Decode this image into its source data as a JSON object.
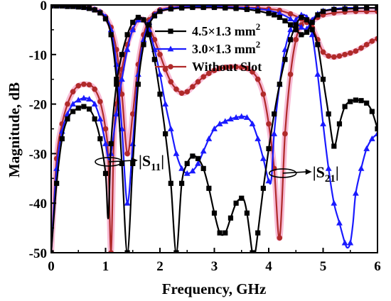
{
  "chart_data": {
    "type": "line",
    "title": "",
    "xlabel": "Frequency, GHz",
    "ylabel": "Magnitude, dB",
    "xlim": [
      0,
      6
    ],
    "ylim": [
      -50,
      0
    ],
    "xticks": [
      "0",
      "1",
      "2",
      "3",
      "4",
      "5",
      "6"
    ],
    "yticks": [
      "0",
      "-10",
      "-20",
      "-30",
      "-40",
      "-50"
    ],
    "grid": false,
    "legend_position": "top-right",
    "annotations": [
      {
        "text": "|S",
        "sub": "11",
        "tail": "|",
        "x": 1.15,
        "y": -30.5
      },
      {
        "text": "|S",
        "sub": "21",
        "tail": "|",
        "x": 4.35,
        "y": -32.8
      }
    ],
    "series": [
      {
        "name": "4.5×1.3 mm",
        "name_sup": "2",
        "color": "#000000",
        "marker": "square",
        "s11": {
          "x": [
            0.0,
            0.1,
            0.2,
            0.3,
            0.4,
            0.5,
            0.6,
            0.7,
            0.8,
            0.9,
            1.0,
            1.05,
            1.1,
            1.2,
            1.3,
            1.4,
            1.5,
            1.6,
            1.7,
            1.8,
            1.9,
            2.0,
            2.1,
            2.2,
            2.3,
            2.4,
            2.5,
            2.6,
            2.7,
            2.8,
            2.9,
            3.0,
            3.1,
            3.2,
            3.3,
            3.4,
            3.5,
            3.55,
            3.6,
            3.65,
            3.7,
            3.75,
            3.8,
            3.9,
            4.0,
            4.1,
            4.2,
            4.3,
            4.4,
            4.5,
            4.6,
            4.7,
            4.8,
            4.9,
            5.0,
            5.1,
            5.2,
            5.3,
            5.4,
            5.5,
            5.6,
            5.7,
            5.8,
            5.9,
            6.0
          ],
          "y": [
            -50,
            -36,
            -27,
            -23,
            -21.5,
            -20.8,
            -20.5,
            -21,
            -23,
            -27,
            -34,
            -43,
            -28,
            -16,
            -10,
            -6,
            -3.5,
            -2.5,
            -3,
            -6,
            -11,
            -18,
            -26,
            -36,
            -50,
            -36,
            -32,
            -30.5,
            -31,
            -33,
            -37,
            -42,
            -46,
            -46,
            -43,
            -40,
            -39,
            -39.5,
            -42,
            -46,
            -50,
            -50,
            -46,
            -37,
            -29,
            -22,
            -16,
            -11,
            -7,
            -4,
            -2.5,
            -3,
            -5,
            -8,
            -15,
            -22,
            -28.5,
            -24,
            -20.5,
            -19.5,
            -19.2,
            -19.3,
            -19.8,
            -21.5,
            -25
          ]
        },
        "s21": {
          "x": [
            0.0,
            0.1,
            0.2,
            0.3,
            0.4,
            0.5,
            0.6,
            0.7,
            0.8,
            0.9,
            1.0,
            1.1,
            1.2,
            1.3,
            1.4,
            1.5,
            1.6,
            1.7,
            1.8,
            1.9,
            2.0,
            2.2,
            2.4,
            2.6,
            2.8,
            3.0,
            3.2,
            3.4,
            3.6,
            3.8,
            4.0,
            4.1,
            4.2,
            4.3,
            4.4,
            4.5,
            4.6,
            4.7,
            4.8,
            4.9,
            5.0,
            5.2,
            5.4,
            5.6,
            5.8,
            6.0
          ],
          "y": [
            -0.2,
            -0.2,
            -0.2,
            -0.3,
            -0.3,
            -0.4,
            -0.5,
            -0.7,
            -1.0,
            -1.6,
            -2.8,
            -6.0,
            -15,
            -32,
            -50,
            -32,
            -16,
            -8,
            -4,
            -2.2,
            -1.3,
            -0.8,
            -0.6,
            -0.5,
            -0.5,
            -0.5,
            -0.6,
            -0.7,
            -0.9,
            -1.2,
            -1.7,
            -2.0,
            -2.5,
            -3.2,
            -4.0,
            -5.0,
            -6.0,
            -5.5,
            -3.5,
            -2.0,
            -1.3,
            -0.9,
            -0.8,
            -0.7,
            -0.6,
            -0.6
          ]
        }
      },
      {
        "name": "3.0×1.3 mm",
        "name_sup": "2",
        "color": "#1a1aff",
        "marker": "triangle",
        "s11": {
          "x": [
            0.0,
            0.1,
            0.2,
            0.3,
            0.4,
            0.5,
            0.6,
            0.7,
            0.8,
            0.9,
            1.0,
            1.05,
            1.1,
            1.2,
            1.3,
            1.4,
            1.5,
            1.6,
            1.7,
            1.8,
            1.9,
            2.0,
            2.1,
            2.2,
            2.3,
            2.4,
            2.5,
            2.6,
            2.7,
            2.8,
            2.9,
            3.0,
            3.1,
            3.2,
            3.3,
            3.4,
            3.5,
            3.6,
            3.7,
            3.8,
            3.9,
            4.0,
            4.05,
            4.1,
            4.2,
            4.3,
            4.4,
            4.5,
            4.6,
            4.7,
            4.8,
            4.9,
            5.0,
            5.1,
            5.2,
            5.3,
            5.4,
            5.45,
            5.5,
            5.55,
            5.6,
            5.7,
            5.8,
            5.9,
            6.0
          ],
          "y": [
            -50,
            -33,
            -25.5,
            -22,
            -20,
            -19.2,
            -18.8,
            -19,
            -20,
            -23,
            -28,
            -31,
            -30,
            -22,
            -15,
            -9,
            -5,
            -3,
            -3,
            -5,
            -9,
            -14,
            -20,
            -25,
            -30,
            -33,
            -34,
            -33.5,
            -32,
            -29.5,
            -27,
            -25,
            -24,
            -23.5,
            -23,
            -22.7,
            -22.5,
            -22.7,
            -24,
            -27,
            -31,
            -35.5,
            -35,
            -26,
            -16,
            -9,
            -5,
            -3,
            -2,
            -2.5,
            -6,
            -14,
            -24,
            -33,
            -40,
            -44,
            -48,
            -49,
            -48,
            -44,
            -38,
            -33,
            -29,
            -27,
            -26
          ]
        },
        "s21": {
          "x": [
            0.0,
            0.1,
            0.2,
            0.3,
            0.4,
            0.5,
            0.6,
            0.7,
            0.8,
            0.9,
            1.0,
            1.1,
            1.2,
            1.3,
            1.4,
            1.5,
            1.6,
            1.7,
            1.8,
            1.9,
            2.0,
            2.2,
            2.4,
            2.6,
            2.8,
            3.0,
            3.2,
            3.4,
            3.6,
            3.8,
            4.0,
            4.2,
            4.4,
            4.6,
            4.7,
            4.8,
            4.9,
            5.0,
            5.2,
            5.4,
            5.6,
            5.8,
            6.0
          ],
          "y": [
            -0.1,
            -0.1,
            -0.1,
            -0.2,
            -0.2,
            -0.3,
            -0.4,
            -0.6,
            -0.9,
            -1.4,
            -2.4,
            -5.0,
            -12,
            -25,
            -40,
            -28,
            -14,
            -7,
            -3.5,
            -2.0,
            -1.1,
            -0.6,
            -0.4,
            -0.3,
            -0.3,
            -0.3,
            -0.4,
            -0.5,
            -0.6,
            -0.8,
            -1.1,
            -1.7,
            -2.8,
            -4.5,
            -4.8,
            -3.0,
            -1.8,
            -1.2,
            -0.8,
            -0.6,
            -0.6,
            -0.6,
            -0.6
          ]
        }
      },
      {
        "name": "Without Slot",
        "name_sup": "",
        "color": "#b02a2a",
        "marker": "circle",
        "s11": {
          "x": [
            0.0,
            0.1,
            0.2,
            0.3,
            0.4,
            0.5,
            0.6,
            0.7,
            0.8,
            0.9,
            1.0,
            1.05,
            1.1,
            1.15,
            1.2,
            1.3,
            1.4,
            1.5,
            1.6,
            1.7,
            1.8,
            1.9,
            2.0,
            2.1,
            2.2,
            2.3,
            2.4,
            2.5,
            2.6,
            2.7,
            2.8,
            2.9,
            3.0,
            3.1,
            3.2,
            3.3,
            3.4,
            3.5,
            3.6,
            3.7,
            3.8,
            3.9,
            4.0,
            4.1,
            4.2,
            4.3,
            4.4,
            4.5,
            4.6,
            4.7,
            4.8,
            4.9,
            5.0,
            5.1,
            5.2,
            5.3,
            5.4,
            5.5,
            5.6,
            5.7,
            5.8,
            5.9,
            6.0
          ],
          "y": [
            -50,
            -31,
            -24,
            -20,
            -17.5,
            -16.3,
            -16,
            -16.1,
            -17,
            -19.5,
            -25,
            -31,
            -50,
            -28,
            -20,
            -13,
            -8,
            -5,
            -3,
            -3,
            -4.5,
            -7,
            -10,
            -13,
            -15.5,
            -17,
            -17.8,
            -17.5,
            -16.5,
            -15.5,
            -14.5,
            -13.8,
            -13.2,
            -12.8,
            -12.6,
            -12.5,
            -12.5,
            -12.6,
            -12.8,
            -13.5,
            -15,
            -18,
            -24,
            -33,
            -47,
            -26,
            -14,
            -7,
            -4,
            -3,
            -4.5,
            -7,
            -9.5,
            -10.3,
            -10.5,
            -10.3,
            -10,
            -9.7,
            -9.3,
            -8.7,
            -8,
            -7.3,
            -6.8
          ]
        },
        "s21": {
          "x": [
            0.0,
            0.1,
            0.2,
            0.3,
            0.4,
            0.5,
            0.6,
            0.7,
            0.8,
            0.9,
            1.0,
            1.1,
            1.2,
            1.3,
            1.4,
            1.5,
            1.6,
            1.7,
            1.8,
            1.9,
            2.0,
            2.2,
            2.4,
            2.6,
            2.8,
            3.0,
            3.2,
            3.4,
            3.6,
            3.8,
            4.0,
            4.2,
            4.4,
            4.6,
            4.7,
            4.8,
            4.9,
            5.0,
            5.2,
            5.4,
            5.6,
            5.8,
            6.0
          ],
          "y": [
            -0.1,
            -0.1,
            -0.1,
            -0.2,
            -0.2,
            -0.3,
            -0.4,
            -0.6,
            -0.9,
            -1.4,
            -2.4,
            -4.5,
            -9.0,
            -18,
            -30,
            -22,
            -12,
            -6,
            -3,
            -1.8,
            -1.0,
            -0.5,
            -0.3,
            -0.3,
            -0.3,
            -0.3,
            -0.3,
            -0.4,
            -0.5,
            -0.6,
            -0.8,
            -1.1,
            -1.8,
            -2.8,
            -3.5,
            -3.2,
            -2.5,
            -2.0,
            -1.6,
            -1.4,
            -1.3,
            -1.3,
            -1.3
          ]
        }
      }
    ]
  }
}
